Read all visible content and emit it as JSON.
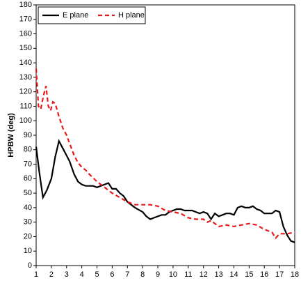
{
  "chart_data": {
    "type": "line",
    "ylabel": "HPBW (deg)",
    "xlim": [
      1,
      18
    ],
    "xticks": [
      1,
      2,
      3,
      4,
      5,
      6,
      7,
      8,
      9,
      10,
      11,
      12,
      13,
      14,
      15,
      16,
      17,
      18
    ],
    "ylim": [
      0,
      180
    ],
    "yticks": [
      0,
      10,
      20,
      30,
      40,
      50,
      60,
      70,
      80,
      90,
      100,
      110,
      120,
      130,
      140,
      150,
      160,
      170,
      180
    ],
    "legend": "upper left",
    "series": [
      {
        "name": "E plane",
        "color": "#000000",
        "dash": "solid",
        "x": [
          1,
          1.2,
          1.45,
          1.7,
          2,
          2.25,
          2.5,
          2.75,
          3,
          3.2,
          3.5,
          3.75,
          4,
          4.25,
          4.5,
          4.75,
          5,
          5.25,
          5.5,
          5.75,
          6,
          6.25,
          6.5,
          6.75,
          7,
          7.5,
          8,
          8.25,
          8.5,
          8.75,
          9,
          9.25,
          9.5,
          9.75,
          10,
          10.25,
          10.5,
          10.75,
          11,
          11.25,
          11.5,
          11.75,
          12,
          12.25,
          12.5,
          12.75,
          13,
          13.25,
          13.5,
          13.75,
          14,
          14.25,
          14.5,
          14.75,
          15,
          15.25,
          15.5,
          15.75,
          16,
          16.25,
          16.5,
          16.75,
          17,
          17.25,
          17.5,
          17.75,
          18
        ],
        "values": [
          82,
          65,
          47,
          52,
          60,
          75,
          86,
          81,
          76,
          72,
          63,
          58,
          56,
          55,
          55,
          55,
          54,
          55,
          56,
          57,
          53,
          53,
          50,
          48,
          44,
          40,
          37,
          34,
          32,
          33,
          34,
          35,
          35,
          37,
          38,
          39,
          39,
          38,
          38,
          38,
          37,
          36,
          37,
          36,
          32,
          36,
          34,
          35,
          36,
          36,
          35,
          40,
          41,
          40,
          40,
          41,
          39,
          38,
          36,
          36,
          36,
          38,
          37,
          27,
          21,
          17,
          16
        ]
      },
      {
        "name": "H plane",
        "color": "#e8191b",
        "dash": "dashed",
        "x": [
          1,
          1.15,
          1.3,
          1.5,
          1.65,
          1.8,
          1.95,
          2.1,
          2.25,
          2.5,
          2.75,
          3,
          3.25,
          3.5,
          3.75,
          4,
          4.25,
          4.5,
          5,
          5.5,
          6,
          6.5,
          7,
          7.5,
          8,
          8.5,
          9,
          9.5,
          10,
          10.5,
          11,
          11.5,
          12,
          12.25,
          12.5,
          12.75,
          13,
          13.5,
          14,
          14.5,
          15,
          15.5,
          16,
          16.5,
          16.75,
          17,
          17.5,
          18
        ],
        "values": [
          136,
          110,
          108,
          118,
          124,
          110,
          107,
          113,
          112,
          103,
          95,
          90,
          83,
          76,
          71,
          68,
          66,
          63,
          58,
          54,
          50,
          47,
          44,
          42,
          42,
          42,
          41,
          38,
          37,
          36,
          33,
          32,
          32,
          30,
          31,
          29,
          27,
          28,
          27,
          28,
          29,
          28,
          25,
          23,
          19,
          22,
          22,
          23
        ]
      }
    ]
  }
}
